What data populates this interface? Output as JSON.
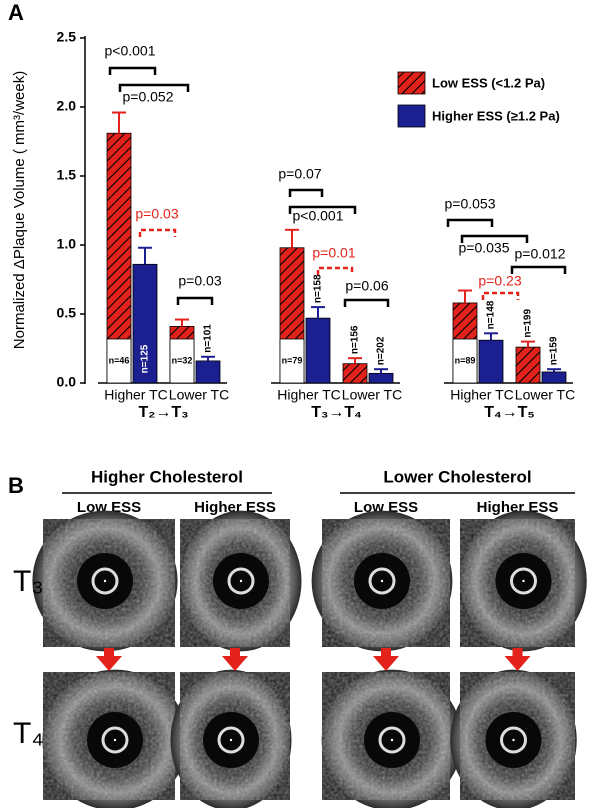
{
  "panel_a_label": "A",
  "chart_data": {
    "type": "bar",
    "y_label": "Normalized ΔPlaque Volume ( mm³/week)",
    "groups": [
      "T₂→T₃",
      "T₃→T₄",
      "T₄→T₅"
    ],
    "categories": [
      "Higher TC",
      "Lower TC",
      "Higher TC",
      "Lower TC",
      "Higher TC",
      "Lower TC"
    ],
    "series": [
      {
        "name": "Low ESS (<1.2 Pa)",
        "color": "#e3231b",
        "pattern": "hatch",
        "values": [
          1.81,
          0.41,
          0.98,
          0.14,
          0.58,
          0.26
        ],
        "errors": [
          0.15,
          0.05,
          0.13,
          0.04,
          0.09,
          0.04
        ],
        "n_labels": [
          "n=46",
          "n=32",
          "n=79",
          "n=156",
          "n=89",
          "n=199"
        ]
      },
      {
        "name": "Higher ESS (≥1.2 Pa)",
        "color": "#1b1f8f",
        "pattern": "solid",
        "values": [
          0.86,
          0.16,
          0.47,
          0.07,
          0.31,
          0.08
        ],
        "errors": [
          0.12,
          0.03,
          0.08,
          0.03,
          0.05,
          0.02
        ],
        "n_labels": [
          "n=125",
          "n=101",
          "n=158",
          "n=202",
          "n=148",
          "n=159"
        ]
      }
    ],
    "ylim": [
      0,
      2.5
    ],
    "yticks": [
      {
        "value": 0,
        "label": "0.0"
      },
      0.5,
      {
        "value": 1,
        "label": "1.0"
      },
      1.5,
      {
        "value": 2,
        "label": "2.0"
      },
      2.5
    ],
    "legend": "top-right",
    "annotations": [
      {
        "text": "p<0.001",
        "color": "#000000"
      },
      {
        "text": "p=0.052",
        "color": "#000000"
      },
      {
        "text": "p=0.03",
        "color": "#e3231b"
      },
      {
        "text": "p=0.03",
        "color": "#000000"
      },
      {
        "text": "p=0.07",
        "color": "#000000"
      },
      {
        "text": "p<0.001",
        "color": "#000000"
      },
      {
        "text": "p=0.01",
        "color": "#e3231b"
      },
      {
        "text": "p=0.06",
        "color": "#000000"
      },
      {
        "text": "p=0.053",
        "color": "#000000"
      },
      {
        "text": "p=0.035",
        "color": "#000000"
      },
      {
        "text": "p=0.23",
        "color": "#e3231b"
      },
      {
        "text": "p=0.012",
        "color": "#000000"
      }
    ]
  },
  "panel_b": {
    "label": "B",
    "headers": [
      "Higher Cholesterol",
      "Lower Cholesterol"
    ],
    "columns": [
      "Low ESS",
      "Higher ESS",
      "Low ESS",
      "Higher ESS"
    ],
    "rows": [
      "T₃",
      "T₄"
    ]
  }
}
